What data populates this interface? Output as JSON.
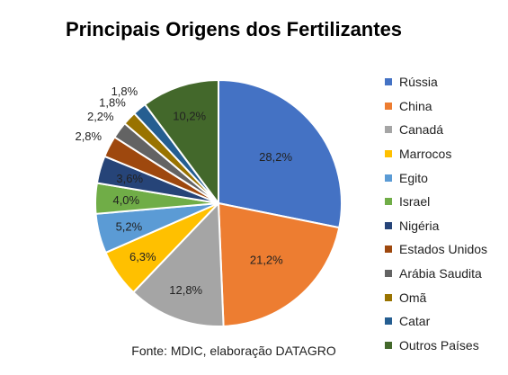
{
  "chart_data": {
    "type": "pie",
    "title": "Principais Origens dos Fertilizantes",
    "source": "Fonte: MDIC, elaboração DATAGRO",
    "legend_position": "right",
    "start_angle_deg": 0,
    "direction": "clockwise",
    "slices": [
      {
        "name": "Rússia",
        "value": 28.2,
        "label": "28,2%",
        "color": "#4472C4"
      },
      {
        "name": "China",
        "value": 21.2,
        "label": "21,2%",
        "color": "#ED7D31"
      },
      {
        "name": "Canadá",
        "value": 12.8,
        "label": "12,8%",
        "color": "#A5A5A5"
      },
      {
        "name": "Marrocos",
        "value": 6.3,
        "label": "6,3%",
        "color": "#FFC000"
      },
      {
        "name": "Egito",
        "value": 5.2,
        "label": "5,2%",
        "color": "#5B9BD5"
      },
      {
        "name": "Israel",
        "value": 4.0,
        "label": "4,0%",
        "color": "#70AD47"
      },
      {
        "name": "Nigéria",
        "value": 3.6,
        "label": "3,6%",
        "color": "#264478"
      },
      {
        "name": "Estados Unidos",
        "value": 2.8,
        "label": "2,8%",
        "color": "#9E480E"
      },
      {
        "name": "Arábia Saudita",
        "value": 2.2,
        "label": "2,2%",
        "color": "#636363"
      },
      {
        "name": "Omã",
        "value": 1.8,
        "label": "1,8%",
        "color": "#997300"
      },
      {
        "name": "Catar",
        "value": 1.8,
        "label": "1,8%",
        "color": "#255E91"
      },
      {
        "name": "Outros Países",
        "value": 10.2,
        "label": "10,2%",
        "color": "#43682B"
      }
    ]
  }
}
